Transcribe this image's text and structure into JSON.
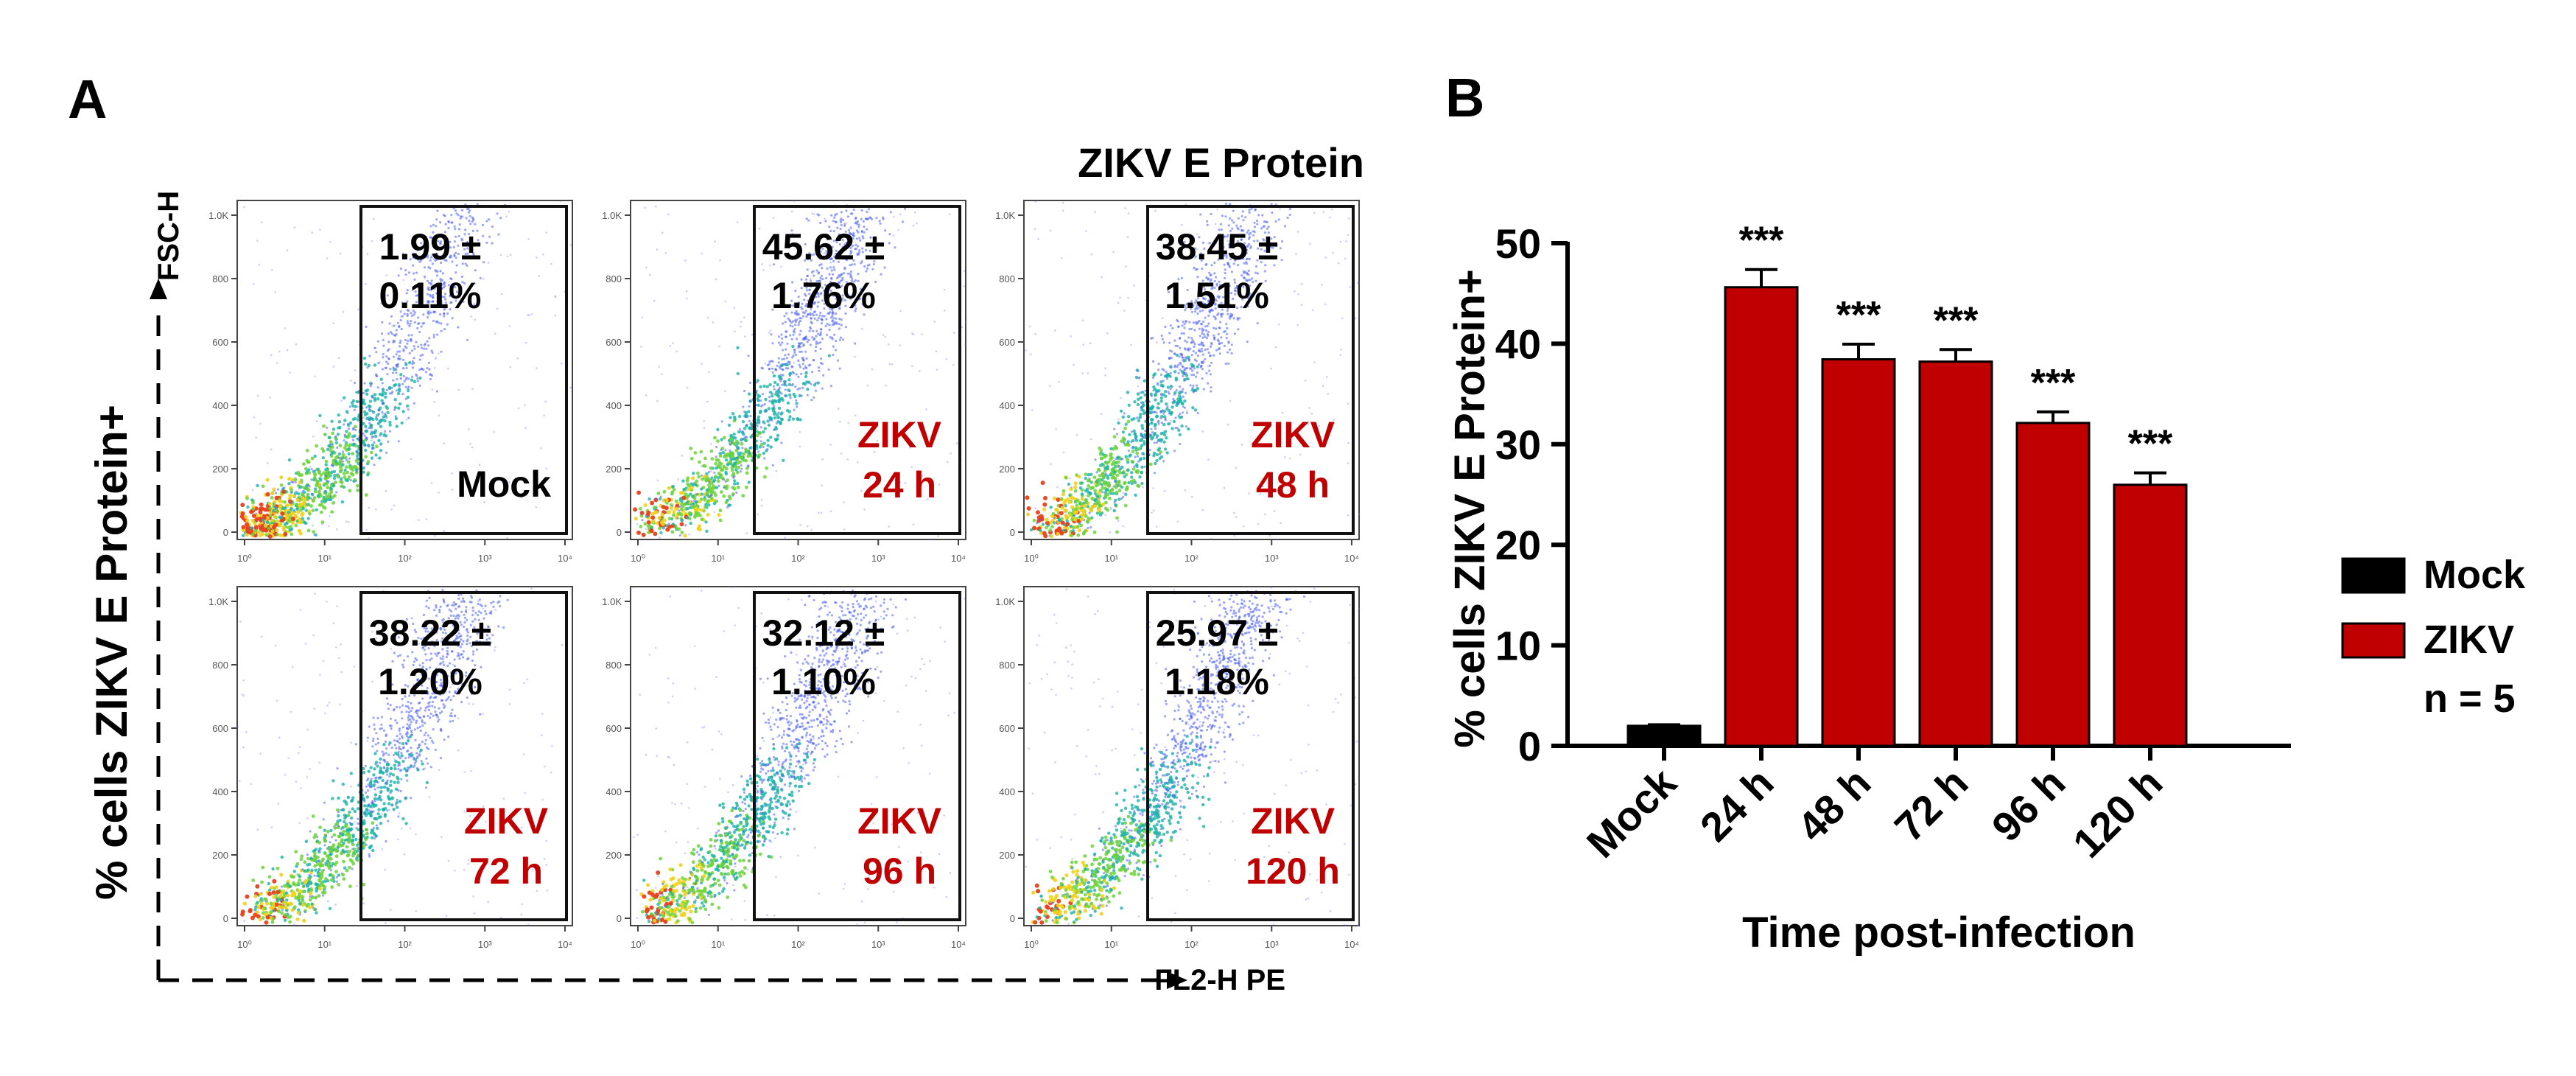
{
  "colors": {
    "zikv": "#c00000",
    "mock": "#000000",
    "axis": "#000000"
  },
  "panel_a": {
    "letter": "A",
    "header": "ZIKV E Protein",
    "y_label": "% cells ZIKV E Protein+",
    "y_channel": "FSC-H",
    "x_channel": "FL2-H PE",
    "y_tick_labels": [
      "0",
      "200",
      "400",
      "600",
      "800",
      "1.0K"
    ],
    "x_tick_labels": [
      "10⁰",
      "10¹",
      "10²",
      "10³",
      "10⁴"
    ],
    "plots": [
      {
        "pct_line1": "1.99 ±",
        "pct_line2": "0.11%",
        "cond_line1": "Mock",
        "cond_line2": "",
        "color": "#000000",
        "pct_value": 1.99,
        "sem": 0.11
      },
      {
        "pct_line1": "45.62 ±",
        "pct_line2": "1.76%",
        "cond_line1": "ZIKV",
        "cond_line2": "24 h",
        "color": "#c00000",
        "pct_value": 45.62,
        "sem": 1.76
      },
      {
        "pct_line1": "38.45 ±",
        "pct_line2": "1.51%",
        "cond_line1": "ZIKV",
        "cond_line2": "48 h",
        "color": "#c00000",
        "pct_value": 38.45,
        "sem": 1.51
      },
      {
        "pct_line1": "38.22 ±",
        "pct_line2": "1.20%",
        "cond_line1": "ZIKV",
        "cond_line2": "72 h",
        "color": "#c00000",
        "pct_value": 38.22,
        "sem": 1.2
      },
      {
        "pct_line1": "32.12 ±",
        "pct_line2": "1.10%",
        "cond_line1": "ZIKV",
        "cond_line2": "96 h",
        "color": "#c00000",
        "pct_value": 32.12,
        "sem": 1.1
      },
      {
        "pct_line1": "25.97 ±",
        "pct_line2": "1.18%",
        "cond_line1": "ZIKV",
        "cond_line2": "120 h",
        "color": "#c00000",
        "pct_value": 25.97,
        "sem": 1.18
      }
    ]
  },
  "chart_data": {
    "type": "bar",
    "panel_letter": "B",
    "title": "",
    "xlabel": "Time post-infection",
    "ylabel": "% cells ZIKV E Protein+",
    "categories": [
      "Mock",
      "24 h",
      "48 h",
      "72 h",
      "96 h",
      "120 h"
    ],
    "values": [
      1.99,
      45.62,
      38.45,
      38.22,
      32.12,
      25.97
    ],
    "errors": [
      0.11,
      1.76,
      1.51,
      1.2,
      1.1,
      1.18
    ],
    "significance": [
      "",
      "***",
      "***",
      "***",
      "***",
      "***"
    ],
    "bar_series": [
      "Mock",
      "ZIKV",
      "ZIKV",
      "ZIKV",
      "ZIKV",
      "ZIKV"
    ],
    "ylim": [
      0,
      50
    ],
    "yticks": [
      0,
      10,
      20,
      30,
      40,
      50
    ],
    "grid": false,
    "legend": {
      "position": "right",
      "entries": [
        {
          "name": "Mock",
          "color": "#000000",
          "sub": ""
        },
        {
          "name": "ZIKV",
          "color": "#c00000",
          "sub": "n = 5"
        }
      ]
    }
  }
}
